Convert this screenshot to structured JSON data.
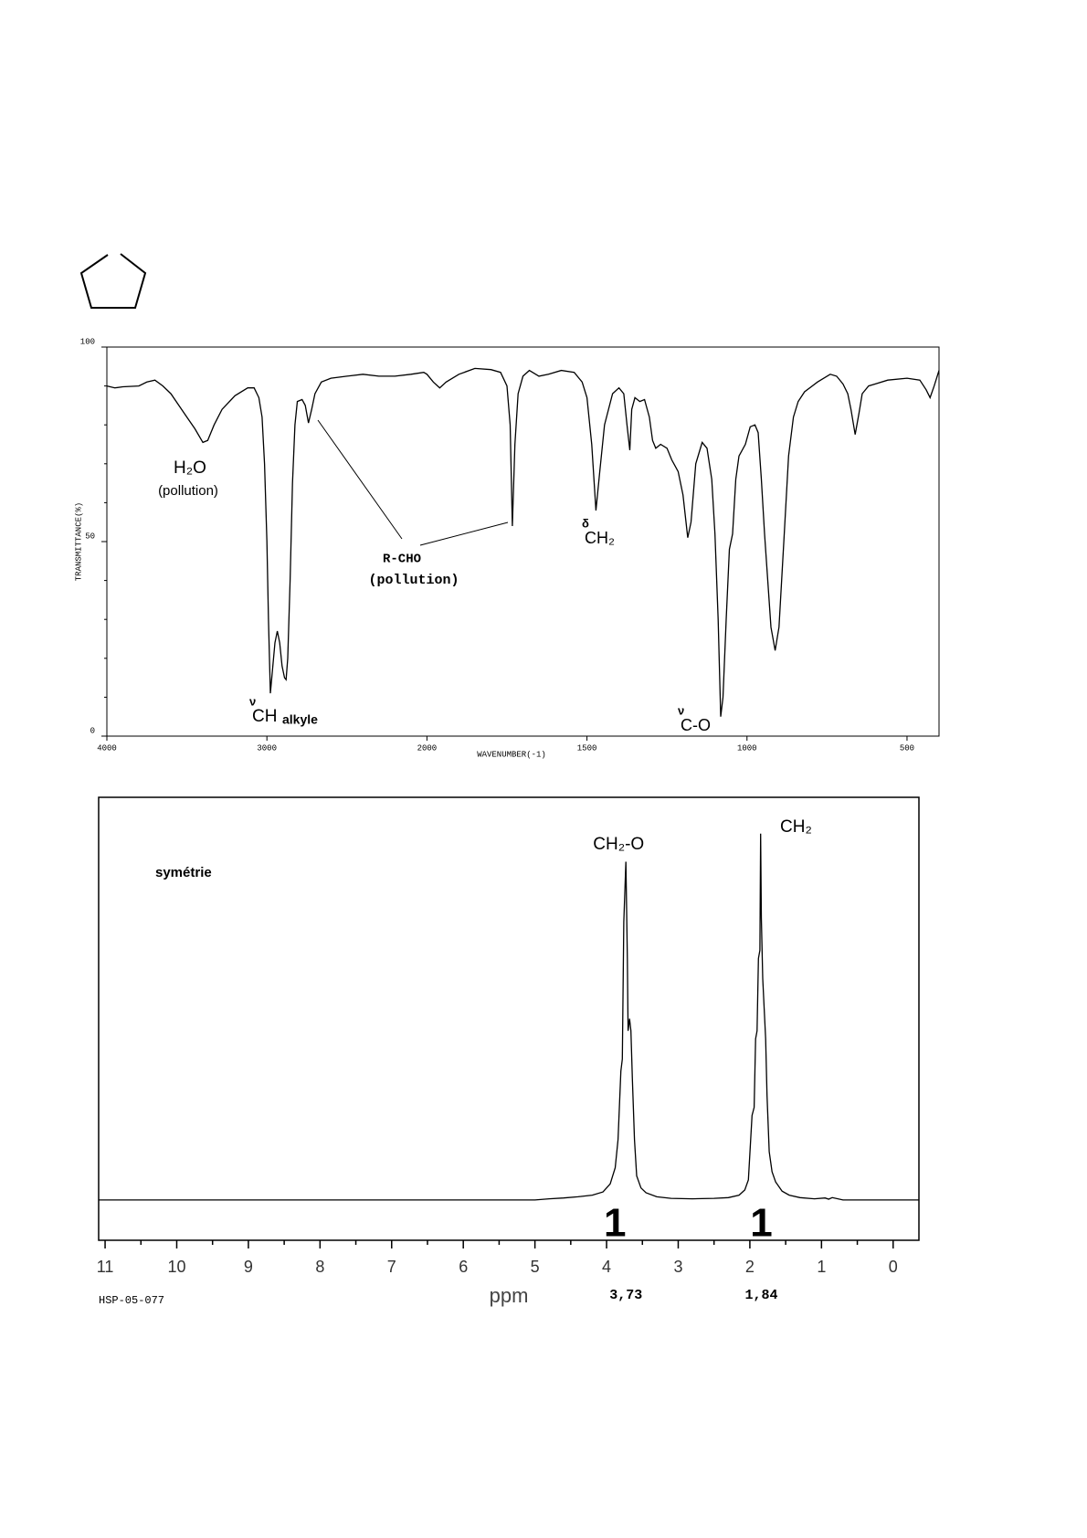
{
  "chart_data": [
    {
      "type": "line",
      "xscale": "piecewise",
      "color": "#000000",
      "xlabel": "WAVENUMBER(-1)",
      "ylabel": "TRANSMITTANCE(%)",
      "xlim": [
        4000,
        400
      ],
      "ylim": [
        0,
        100
      ],
      "xticks": [
        4000,
        3000,
        2000,
        1500,
        1000,
        500
      ],
      "yticks": [
        0,
        50,
        100
      ],
      "minor_yticks": [
        10,
        20,
        30,
        40,
        60,
        70,
        80,
        90
      ],
      "x": [
        4000,
        3950,
        3900,
        3800,
        3750,
        3700,
        3650,
        3600,
        3550,
        3500,
        3450,
        3400,
        3370,
        3330,
        3280,
        3200,
        3120,
        3080,
        3050,
        3030,
        3015,
        3000,
        2990,
        2978,
        2965,
        2950,
        2935,
        2920,
        2905,
        2890,
        2880,
        2870,
        2855,
        2840,
        2825,
        2810,
        2780,
        2760,
        2740,
        2720,
        2700,
        2660,
        2600,
        2500,
        2400,
        2300,
        2200,
        2100,
        2020,
        2000,
        1980,
        1960,
        1940,
        1900,
        1850,
        1800,
        1770,
        1750,
        1740,
        1733,
        1725,
        1715,
        1700,
        1680,
        1650,
        1620,
        1580,
        1540,
        1515,
        1500,
        1485,
        1472,
        1460,
        1445,
        1420,
        1400,
        1385,
        1375,
        1366,
        1360,
        1350,
        1335,
        1320,
        1305,
        1295,
        1285,
        1270,
        1250,
        1235,
        1215,
        1200,
        1185,
        1175,
        1160,
        1140,
        1125,
        1110,
        1100,
        1090,
        1082,
        1075,
        1065,
        1055,
        1045,
        1035,
        1025,
        1005,
        990,
        975,
        965,
        955,
        945,
        935,
        925,
        912,
        900,
        885,
        870,
        855,
        840,
        820,
        780,
        740,
        720,
        700,
        685,
        675,
        662,
        650,
        640,
        620,
        600,
        560,
        500,
        460,
        440,
        428,
        415,
        400
      ],
      "values": [
        90,
        89.5,
        89.8,
        90,
        91,
        91.5,
        90,
        88,
        85,
        82,
        79,
        75.5,
        76,
        80,
        84,
        87.5,
        89.5,
        89.5,
        87,
        82,
        70,
        50,
        30,
        11,
        17,
        24,
        27,
        24,
        18,
        15,
        14.5,
        20,
        40,
        65,
        80,
        86,
        86.5,
        85,
        80.5,
        84,
        88,
        91,
        92,
        92.5,
        93,
        92.5,
        92.5,
        93,
        93.5,
        93,
        91,
        89.5,
        91,
        93,
        94.5,
        94.2,
        93.5,
        90,
        80,
        54,
        75,
        88,
        92.5,
        94,
        92.5,
        93,
        94,
        93.5,
        91,
        87,
        75,
        58,
        68,
        80,
        88,
        89.5,
        88,
        80,
        73.5,
        84,
        87,
        86,
        86.5,
        82,
        76,
        74,
        75,
        74,
        71,
        68,
        62,
        51,
        55,
        70,
        75.5,
        74,
        66,
        52,
        30,
        5,
        10,
        30,
        48,
        52,
        66,
        72,
        75,
        79.5,
        80,
        78,
        66,
        52,
        40,
        28,
        22,
        28,
        50,
        72,
        82,
        86,
        88.5,
        91,
        93,
        92.5,
        90.5,
        88,
        84,
        77.5,
        83,
        88,
        90,
        90.5,
        91.5,
        92,
        91.5,
        89,
        87,
        90,
        94
      ],
      "annotations": [
        {
          "text": "H₂O"
        },
        {
          "text": "(pollution)"
        },
        {
          "symbol": "ν",
          "text": "CH",
          "sub": "alkyle"
        },
        {
          "text": "R-CHO"
        },
        {
          "text": "(pollution)"
        },
        {
          "symbol": "δ",
          "text": "CH₂"
        },
        {
          "symbol": "ν",
          "text": "C-O"
        }
      ]
    },
    {
      "type": "line",
      "color": "#000000",
      "xlabel": "ppm",
      "code": "HSP-05-077",
      "xlim": [
        11.09,
        -0.36
      ],
      "ylim": [
        -10,
        100
      ],
      "xticks": [
        11,
        10,
        9,
        8,
        7,
        6,
        5,
        4,
        3,
        2,
        1,
        0
      ],
      "minor_xticks": [
        10.5,
        9.5,
        8.5,
        7.5,
        6.5,
        5.5,
        4.5,
        3.5,
        2.5,
        1.5,
        0.5
      ],
      "x": [
        11.09,
        5.0,
        4.8,
        4.6,
        4.4,
        4.2,
        4.05,
        3.95,
        3.88,
        3.84,
        3.8,
        3.78,
        3.76,
        3.73,
        3.71,
        3.7,
        3.68,
        3.66,
        3.64,
        3.61,
        3.58,
        3.52,
        3.45,
        3.3,
        3.1,
        2.8,
        2.5,
        2.3,
        2.15,
        2.07,
        2.02,
        1.97,
        1.94,
        1.92,
        1.9,
        1.88,
        1.86,
        1.85,
        1.84,
        1.82,
        1.8,
        1.78,
        1.76,
        1.73,
        1.69,
        1.64,
        1.55,
        1.45,
        1.3,
        1.1,
        0.95,
        0.9,
        0.85,
        0.7,
        -0.36
      ],
      "values": [
        0,
        0,
        0.3,
        0.5,
        0.8,
        1.2,
        2,
        4,
        8,
        15,
        32,
        35,
        69,
        84,
        60,
        42,
        45,
        42,
        30,
        15,
        6,
        3,
        1.8,
        0.8,
        0.4,
        0.3,
        0.4,
        0.6,
        1.2,
        2.5,
        5,
        21,
        23,
        40,
        42,
        60,
        62,
        91,
        70,
        55,
        47.5,
        40,
        26,
        12,
        7,
        4.5,
        2.2,
        1.2,
        0.6,
        0.3,
        0.5,
        0.2,
        0.6,
        0,
        0
      ],
      "annotation": "symétrie",
      "peaks": [
        {
          "value": 3.73,
          "label": "3,73",
          "name": "CH₂-O",
          "integral": 1
        },
        {
          "value": 1.84,
          "label": "1,84",
          "name": "CH₂",
          "integral": 1
        }
      ]
    }
  ]
}
